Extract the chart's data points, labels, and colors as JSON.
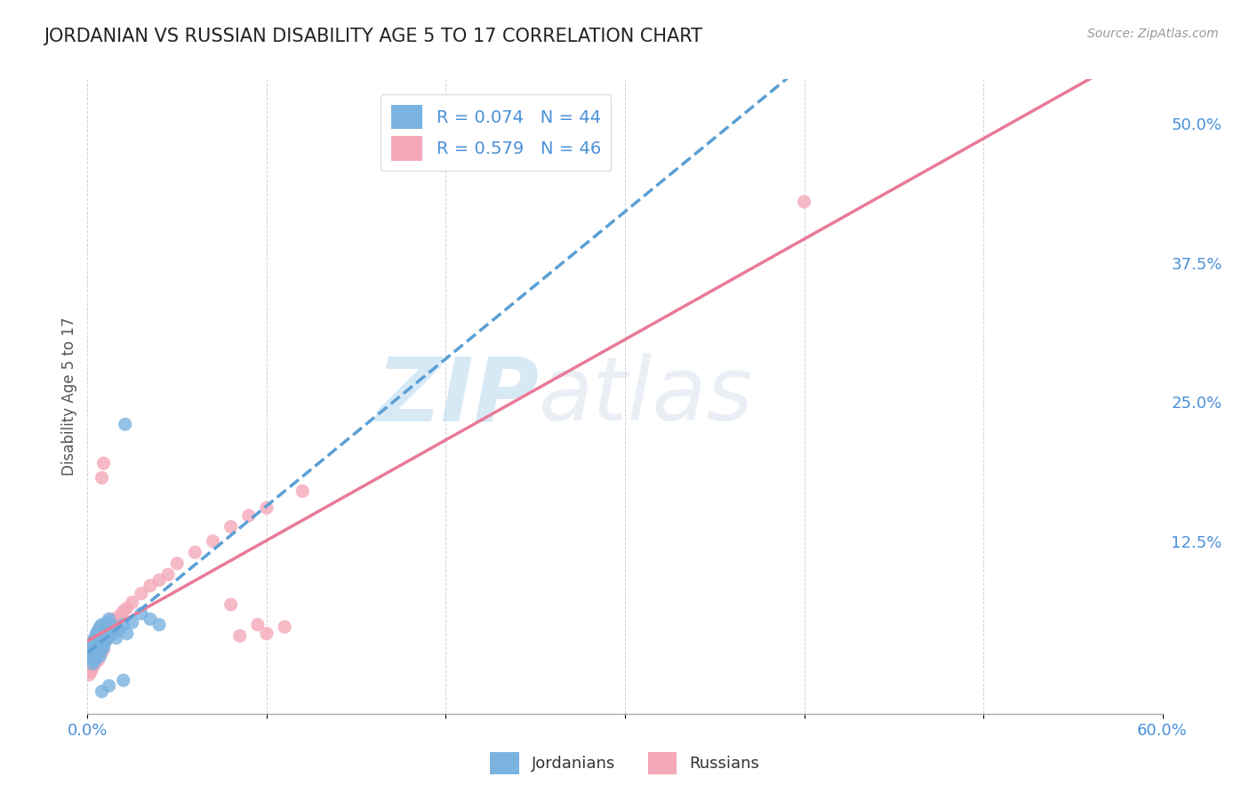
{
  "title": "JORDANIAN VS RUSSIAN DISABILITY AGE 5 TO 17 CORRELATION CHART",
  "source": "Source: ZipAtlas.com",
  "ylabel": "Disability Age 5 to 17",
  "xlim": [
    0.0,
    0.6
  ],
  "ylim": [
    -0.03,
    0.54
  ],
  "ytick_labels_right": [
    "50.0%",
    "37.5%",
    "25.0%",
    "12.5%"
  ],
  "ytick_vals_right": [
    0.5,
    0.375,
    0.25,
    0.125
  ],
  "jordan_color": "#7ab3e0",
  "russia_color": "#f4a8b8",
  "jordan_line_color": "#5a9fd4",
  "russia_line_color": "#e87a97",
  "jordan_scatter_x": [
    0.001,
    0.002,
    0.002,
    0.003,
    0.003,
    0.003,
    0.004,
    0.004,
    0.004,
    0.005,
    0.005,
    0.005,
    0.006,
    0.006,
    0.006,
    0.007,
    0.007,
    0.007,
    0.008,
    0.008,
    0.008,
    0.009,
    0.009,
    0.01,
    0.01,
    0.011,
    0.011,
    0.012,
    0.012,
    0.013,
    0.014,
    0.015,
    0.016,
    0.018,
    0.02,
    0.022,
    0.025,
    0.03,
    0.035,
    0.04,
    0.02,
    0.012,
    0.008,
    0.021
  ],
  "jordan_scatter_y": [
    0.02,
    0.025,
    0.03,
    0.015,
    0.022,
    0.035,
    0.018,
    0.028,
    0.038,
    0.02,
    0.032,
    0.042,
    0.025,
    0.035,
    0.045,
    0.022,
    0.038,
    0.048,
    0.028,
    0.04,
    0.05,
    0.03,
    0.042,
    0.035,
    0.045,
    0.038,
    0.052,
    0.04,
    0.055,
    0.045,
    0.042,
    0.048,
    0.038,
    0.045,
    0.05,
    0.042,
    0.052,
    0.06,
    0.055,
    0.05,
    0.0,
    -0.005,
    -0.01,
    0.23
  ],
  "russia_scatter_x": [
    0.001,
    0.002,
    0.003,
    0.003,
    0.004,
    0.005,
    0.005,
    0.006,
    0.006,
    0.007,
    0.007,
    0.008,
    0.008,
    0.009,
    0.009,
    0.01,
    0.01,
    0.011,
    0.012,
    0.013,
    0.014,
    0.015,
    0.016,
    0.018,
    0.02,
    0.022,
    0.025,
    0.03,
    0.035,
    0.04,
    0.045,
    0.05,
    0.06,
    0.07,
    0.08,
    0.09,
    0.1,
    0.12,
    0.4,
    0.08,
    0.008,
    0.009,
    0.085,
    0.095,
    0.1,
    0.11
  ],
  "russia_scatter_y": [
    0.005,
    0.008,
    0.012,
    0.018,
    0.015,
    0.02,
    0.025,
    0.018,
    0.03,
    0.022,
    0.035,
    0.025,
    0.04,
    0.028,
    0.045,
    0.035,
    0.05,
    0.038,
    0.042,
    0.048,
    0.055,
    0.045,
    0.052,
    0.058,
    0.062,
    0.065,
    0.07,
    0.078,
    0.085,
    0.09,
    0.095,
    0.105,
    0.115,
    0.125,
    0.138,
    0.148,
    0.155,
    0.17,
    0.43,
    0.068,
    0.182,
    0.195,
    0.04,
    0.05,
    0.042,
    0.048
  ],
  "watermark_zip": "ZIP",
  "watermark_atlas": "atlas",
  "background_color": "#ffffff",
  "grid_color": "#c8c8c8",
  "legend_jordan_label": "R = 0.074   N = 44",
  "legend_russia_label": "R = 0.579   N = 46"
}
